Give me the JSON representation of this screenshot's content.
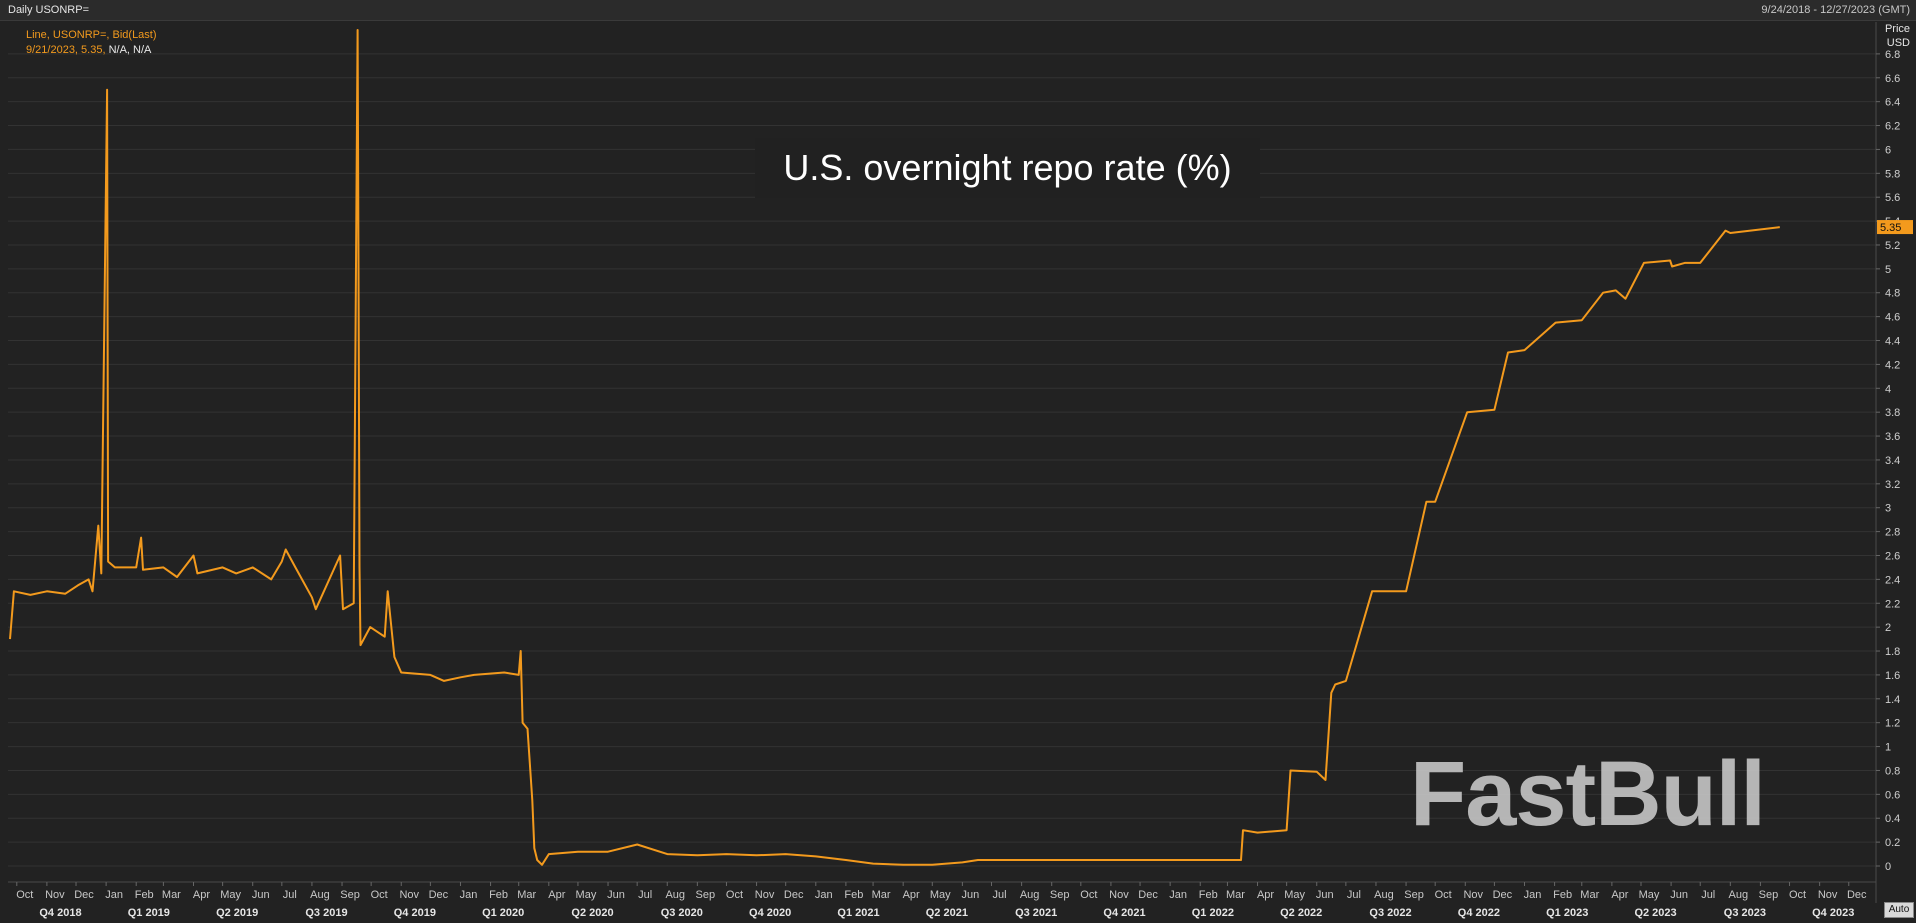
{
  "header": {
    "ric_label": "Daily USONRP=",
    "date_range": "9/24/2018 - 12/27/2023 (GMT)"
  },
  "legend": {
    "line1": "Line, USONRP=, Bid(Last)",
    "line2_value": "9/21/2023, 5.35, ",
    "line2_na": "N/A, N/A"
  },
  "axis": {
    "title_line1": "Price",
    "title_line2": "USD"
  },
  "auto_button": "Auto",
  "watermark": "FastBull",
  "colors": {
    "background": "#222222",
    "line": "#f39a1d",
    "grid": "#333333",
    "label_bg": "#f39a1d"
  },
  "chart_data": {
    "type": "line",
    "title": "U.S. overnight repo rate (%)",
    "xlabel": "",
    "ylabel": "Price USD",
    "ylim": [
      0,
      7
    ],
    "x_range": [
      "2018-09-24",
      "2023-12-27"
    ],
    "y_ticks": [
      "0",
      "0.2",
      "0.4",
      "0.6",
      "0.8",
      "1",
      "1.2",
      "1.4",
      "1.6",
      "1.8",
      "2",
      "2.2",
      "2.4",
      "2.6",
      "2.8",
      "3",
      "3.2",
      "3.4",
      "3.6",
      "3.8",
      "4",
      "4.2",
      "4.4",
      "4.6",
      "4.8",
      "5",
      "5.2",
      "5.4",
      "5.6",
      "5.8",
      "6",
      "6.2",
      "6.4",
      "6.6",
      "6.8"
    ],
    "last_value_label": "5.35",
    "month_ticks": [
      {
        "date": "2018-10-01",
        "label": "Oct"
      },
      {
        "date": "2018-11-01",
        "label": "Nov"
      },
      {
        "date": "2018-12-01",
        "label": "Dec"
      },
      {
        "date": "2019-01-01",
        "label": "Jan"
      },
      {
        "date": "2019-02-01",
        "label": "Feb"
      },
      {
        "date": "2019-03-01",
        "label": "Mar"
      },
      {
        "date": "2019-04-01",
        "label": "Apr"
      },
      {
        "date": "2019-05-01",
        "label": "May"
      },
      {
        "date": "2019-06-01",
        "label": "Jun"
      },
      {
        "date": "2019-07-01",
        "label": "Jul"
      },
      {
        "date": "2019-08-01",
        "label": "Aug"
      },
      {
        "date": "2019-09-01",
        "label": "Sep"
      },
      {
        "date": "2019-10-01",
        "label": "Oct"
      },
      {
        "date": "2019-11-01",
        "label": "Nov"
      },
      {
        "date": "2019-12-01",
        "label": "Dec"
      },
      {
        "date": "2020-01-01",
        "label": "Jan"
      },
      {
        "date": "2020-02-01",
        "label": "Feb"
      },
      {
        "date": "2020-03-01",
        "label": "Mar"
      },
      {
        "date": "2020-04-01",
        "label": "Apr"
      },
      {
        "date": "2020-05-01",
        "label": "May"
      },
      {
        "date": "2020-06-01",
        "label": "Jun"
      },
      {
        "date": "2020-07-01",
        "label": "Jul"
      },
      {
        "date": "2020-08-01",
        "label": "Aug"
      },
      {
        "date": "2020-09-01",
        "label": "Sep"
      },
      {
        "date": "2020-10-01",
        "label": "Oct"
      },
      {
        "date": "2020-11-01",
        "label": "Nov"
      },
      {
        "date": "2020-12-01",
        "label": "Dec"
      },
      {
        "date": "2021-01-01",
        "label": "Jan"
      },
      {
        "date": "2021-02-01",
        "label": "Feb"
      },
      {
        "date": "2021-03-01",
        "label": "Mar"
      },
      {
        "date": "2021-04-01",
        "label": "Apr"
      },
      {
        "date": "2021-05-01",
        "label": "May"
      },
      {
        "date": "2021-06-01",
        "label": "Jun"
      },
      {
        "date": "2021-07-01",
        "label": "Jul"
      },
      {
        "date": "2021-08-01",
        "label": "Aug"
      },
      {
        "date": "2021-09-01",
        "label": "Sep"
      },
      {
        "date": "2021-10-01",
        "label": "Oct"
      },
      {
        "date": "2021-11-01",
        "label": "Nov"
      },
      {
        "date": "2021-12-01",
        "label": "Dec"
      },
      {
        "date": "2022-01-01",
        "label": "Jan"
      },
      {
        "date": "2022-02-01",
        "label": "Feb"
      },
      {
        "date": "2022-03-01",
        "label": "Mar"
      },
      {
        "date": "2022-04-01",
        "label": "Apr"
      },
      {
        "date": "2022-05-01",
        "label": "May"
      },
      {
        "date": "2022-06-01",
        "label": "Jun"
      },
      {
        "date": "2022-07-01",
        "label": "Jul"
      },
      {
        "date": "2022-08-01",
        "label": "Aug"
      },
      {
        "date": "2022-09-01",
        "label": "Sep"
      },
      {
        "date": "2022-10-01",
        "label": "Oct"
      },
      {
        "date": "2022-11-01",
        "label": "Nov"
      },
      {
        "date": "2022-12-01",
        "label": "Dec"
      },
      {
        "date": "2023-01-01",
        "label": "Jan"
      },
      {
        "date": "2023-02-01",
        "label": "Feb"
      },
      {
        "date": "2023-03-01",
        "label": "Mar"
      },
      {
        "date": "2023-04-01",
        "label": "Apr"
      },
      {
        "date": "2023-05-01",
        "label": "May"
      },
      {
        "date": "2023-06-01",
        "label": "Jun"
      },
      {
        "date": "2023-07-01",
        "label": "Jul"
      },
      {
        "date": "2023-08-01",
        "label": "Aug"
      },
      {
        "date": "2023-09-01",
        "label": "Sep"
      },
      {
        "date": "2023-10-01",
        "label": "Oct"
      },
      {
        "date": "2023-11-01",
        "label": "Nov"
      },
      {
        "date": "2023-12-01",
        "label": "Dec"
      }
    ],
    "quarter_ticks": [
      {
        "date": "2018-11-15",
        "label": "Q4 2018"
      },
      {
        "date": "2019-02-14",
        "label": "Q1 2019"
      },
      {
        "date": "2019-05-16",
        "label": "Q2 2019"
      },
      {
        "date": "2019-08-16",
        "label": "Q3 2019"
      },
      {
        "date": "2019-11-15",
        "label": "Q4 2019"
      },
      {
        "date": "2020-02-14",
        "label": "Q1 2020"
      },
      {
        "date": "2020-05-16",
        "label": "Q2 2020"
      },
      {
        "date": "2020-08-16",
        "label": "Q3 2020"
      },
      {
        "date": "2020-11-15",
        "label": "Q4 2020"
      },
      {
        "date": "2021-02-14",
        "label": "Q1 2021"
      },
      {
        "date": "2021-05-16",
        "label": "Q2 2021"
      },
      {
        "date": "2021-08-16",
        "label": "Q3 2021"
      },
      {
        "date": "2021-11-15",
        "label": "Q4 2021"
      },
      {
        "date": "2022-02-14",
        "label": "Q1 2022"
      },
      {
        "date": "2022-05-16",
        "label": "Q2 2022"
      },
      {
        "date": "2022-08-16",
        "label": "Q3 2022"
      },
      {
        "date": "2022-11-15",
        "label": "Q4 2022"
      },
      {
        "date": "2023-02-14",
        "label": "Q1 2023"
      },
      {
        "date": "2023-05-16",
        "label": "Q2 2023"
      },
      {
        "date": "2023-08-16",
        "label": "Q3 2023"
      },
      {
        "date": "2023-11-15",
        "label": "Q4 2023"
      }
    ],
    "series": [
      {
        "points": [
          [
            "2018-09-24",
            1.9
          ],
          [
            "2018-09-28",
            2.3
          ],
          [
            "2018-10-15",
            2.27
          ],
          [
            "2018-11-01",
            2.3
          ],
          [
            "2018-11-20",
            2.28
          ],
          [
            "2018-12-03",
            2.35
          ],
          [
            "2018-12-14",
            2.4
          ],
          [
            "2018-12-18",
            2.3
          ],
          [
            "2018-12-24",
            2.85
          ],
          [
            "2018-12-27",
            2.45
          ],
          [
            "2019-01-02",
            6.5
          ],
          [
            "2019-01-03",
            2.55
          ],
          [
            "2019-01-10",
            2.5
          ],
          [
            "2019-02-01",
            2.5
          ],
          [
            "2019-02-06",
            2.75
          ],
          [
            "2019-02-08",
            2.48
          ],
          [
            "2019-03-01",
            2.5
          ],
          [
            "2019-03-15",
            2.42
          ],
          [
            "2019-04-01",
            2.6
          ],
          [
            "2019-04-05",
            2.45
          ],
          [
            "2019-05-01",
            2.5
          ],
          [
            "2019-05-15",
            2.45
          ],
          [
            "2019-06-01",
            2.5
          ],
          [
            "2019-06-20",
            2.4
          ],
          [
            "2019-07-01",
            2.55
          ],
          [
            "2019-07-05",
            2.65
          ],
          [
            "2019-07-15",
            2.5
          ],
          [
            "2019-08-01",
            2.25
          ],
          [
            "2019-08-05",
            2.15
          ],
          [
            "2019-08-30",
            2.6
          ],
          [
            "2019-09-02",
            2.15
          ],
          [
            "2019-09-13",
            2.2
          ],
          [
            "2019-09-17",
            7.0
          ],
          [
            "2019-09-18",
            5.0
          ],
          [
            "2019-09-19",
            2.5
          ],
          [
            "2019-09-20",
            1.85
          ],
          [
            "2019-09-30",
            2.0
          ],
          [
            "2019-10-15",
            1.92
          ],
          [
            "2019-10-18",
            2.3
          ],
          [
            "2019-10-25",
            1.75
          ],
          [
            "2019-11-01",
            1.62
          ],
          [
            "2019-12-01",
            1.6
          ],
          [
            "2019-12-15",
            1.55
          ],
          [
            "2020-01-01",
            1.58
          ],
          [
            "2020-01-15",
            1.6
          ],
          [
            "2020-02-15",
            1.62
          ],
          [
            "2020-03-01",
            1.6
          ],
          [
            "2020-03-03",
            1.8
          ],
          [
            "2020-03-05",
            1.2
          ],
          [
            "2020-03-10",
            1.15
          ],
          [
            "2020-03-15",
            0.55
          ],
          [
            "2020-03-17",
            0.15
          ],
          [
            "2020-03-20",
            0.05
          ],
          [
            "2020-03-25",
            0.01
          ],
          [
            "2020-04-01",
            0.1
          ],
          [
            "2020-05-01",
            0.12
          ],
          [
            "2020-06-01",
            0.12
          ],
          [
            "2020-07-01",
            0.18
          ],
          [
            "2020-08-01",
            0.1
          ],
          [
            "2020-09-01",
            0.09
          ],
          [
            "2020-10-01",
            0.1
          ],
          [
            "2020-11-01",
            0.09
          ],
          [
            "2020-12-01",
            0.1
          ],
          [
            "2021-01-01",
            0.08
          ],
          [
            "2021-02-01",
            0.05
          ],
          [
            "2021-03-01",
            0.02
          ],
          [
            "2021-04-01",
            0.01
          ],
          [
            "2021-05-01",
            0.01
          ],
          [
            "2021-06-01",
            0.03
          ],
          [
            "2021-06-17",
            0.05
          ],
          [
            "2021-07-01",
            0.05
          ],
          [
            "2021-09-01",
            0.05
          ],
          [
            "2021-11-01",
            0.05
          ],
          [
            "2022-01-01",
            0.05
          ],
          [
            "2022-03-15",
            0.05
          ],
          [
            "2022-03-17",
            0.3
          ],
          [
            "2022-04-01",
            0.28
          ],
          [
            "2022-05-01",
            0.3
          ],
          [
            "2022-05-05",
            0.8
          ],
          [
            "2022-06-01",
            0.79
          ],
          [
            "2022-06-10",
            0.72
          ],
          [
            "2022-06-16",
            1.45
          ],
          [
            "2022-06-20",
            1.52
          ],
          [
            "2022-07-01",
            1.55
          ],
          [
            "2022-07-28",
            2.3
          ],
          [
            "2022-09-01",
            2.3
          ],
          [
            "2022-09-22",
            3.05
          ],
          [
            "2022-10-01",
            3.05
          ],
          [
            "2022-11-03",
            3.8
          ],
          [
            "2022-12-01",
            3.82
          ],
          [
            "2022-12-15",
            4.3
          ],
          [
            "2023-01-01",
            4.32
          ],
          [
            "2023-02-02",
            4.55
          ],
          [
            "2023-03-01",
            4.57
          ],
          [
            "2023-03-23",
            4.8
          ],
          [
            "2023-04-05",
            4.82
          ],
          [
            "2023-04-15",
            4.75
          ],
          [
            "2023-05-04",
            5.05
          ],
          [
            "2023-05-31",
            5.07
          ],
          [
            "2023-06-02",
            5.02
          ],
          [
            "2023-06-15",
            5.05
          ],
          [
            "2023-07-01",
            5.05
          ],
          [
            "2023-07-27",
            5.32
          ],
          [
            "2023-08-01",
            5.3
          ],
          [
            "2023-09-21",
            5.35
          ]
        ]
      }
    ]
  }
}
